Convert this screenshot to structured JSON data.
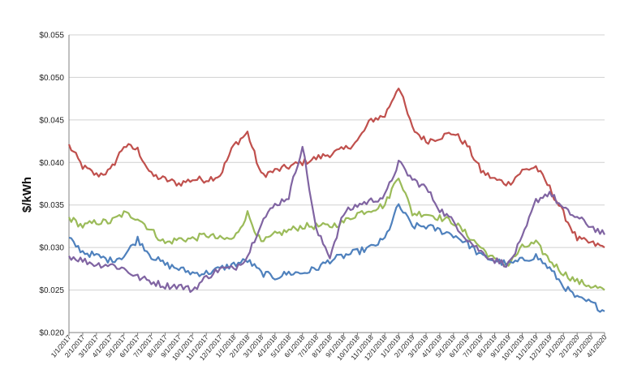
{
  "chart_data": {
    "type": "line",
    "title": "",
    "xlabel": "",
    "ylabel": "$/kWh",
    "ylim": [
      0.02,
      0.055
    ],
    "yticks": [
      "$0.020",
      "$0.025",
      "$0.030",
      "$0.035",
      "$0.040",
      "$0.045",
      "$0.050",
      "$0.055"
    ],
    "y_tick_values": [
      0.02,
      0.025,
      0.03,
      0.035,
      0.04,
      0.045,
      0.05,
      0.055
    ],
    "grid": true,
    "legend": "none",
    "categories": [
      "1/1/2017",
      "2/1/2017",
      "3/1/2017",
      "4/1/2017",
      "5/1/2017",
      "6/1/2017",
      "7/1/2017",
      "8/1/2017",
      "9/1/2017",
      "10/1/2017",
      "11/1/2017",
      "12/1/2017",
      "1/1/2018",
      "2/1/2018",
      "3/1/2018",
      "4/1/2018",
      "5/1/2018",
      "6/1/2018",
      "7/1/2018",
      "8/1/2018",
      "9/1/2018",
      "10/1/2018",
      "11/1/2018",
      "12/1/2018",
      "1/1/2019",
      "2/1/2019",
      "3/1/2019",
      "4/1/2019",
      "5/1/2019",
      "6/1/2019",
      "7/1/2019",
      "8/1/2019",
      "9/1/2019",
      "10/1/2019",
      "11/1/2019",
      "12/1/2019",
      "1/1/2020",
      "2/1/2020",
      "3/1/2020",
      "4/1/2020"
    ],
    "series": [
      {
        "color": "#c0504d",
        "values": [
          0.042,
          0.0395,
          0.0385,
          0.039,
          0.042,
          0.0415,
          0.0385,
          0.038,
          0.0375,
          0.038,
          0.038,
          0.0385,
          0.042,
          0.0435,
          0.0385,
          0.039,
          0.0395,
          0.04,
          0.0405,
          0.041,
          0.0415,
          0.0425,
          0.045,
          0.0455,
          0.049,
          0.044,
          0.0425,
          0.043,
          0.0435,
          0.042,
          0.039,
          0.038,
          0.0375,
          0.039,
          0.0395,
          0.037,
          0.034,
          0.031,
          0.0305,
          0.03
        ]
      },
      {
        "color": "#9bbb59",
        "values": [
          0.0335,
          0.0325,
          0.033,
          0.033,
          0.034,
          0.0335,
          0.032,
          0.0305,
          0.031,
          0.031,
          0.0315,
          0.031,
          0.031,
          0.034,
          0.0305,
          0.0315,
          0.032,
          0.0325,
          0.0325,
          0.0325,
          0.033,
          0.034,
          0.0345,
          0.035,
          0.0385,
          0.034,
          0.034,
          0.0335,
          0.033,
          0.0315,
          0.03,
          0.0285,
          0.028,
          0.03,
          0.0305,
          0.0285,
          0.027,
          0.026,
          0.0255,
          0.025
        ]
      },
      {
        "color": "#4f81bd",
        "values": [
          0.031,
          0.0295,
          0.029,
          0.0285,
          0.029,
          0.031,
          0.029,
          0.028,
          0.0275,
          0.027,
          0.027,
          0.0275,
          0.028,
          0.0285,
          0.027,
          0.0265,
          0.027,
          0.027,
          0.0275,
          0.0285,
          0.029,
          0.0295,
          0.03,
          0.031,
          0.035,
          0.0325,
          0.0325,
          0.032,
          0.0315,
          0.0305,
          0.029,
          0.0285,
          0.028,
          0.0285,
          0.029,
          0.0275,
          0.0255,
          0.024,
          0.0235,
          0.0225
        ]
      },
      {
        "color": "#8064a2",
        "values": [
          0.029,
          0.0285,
          0.028,
          0.028,
          0.0275,
          0.0265,
          0.026,
          0.0255,
          0.0255,
          0.025,
          0.0265,
          0.0275,
          0.0275,
          0.029,
          0.033,
          0.035,
          0.036,
          0.042,
          0.032,
          0.029,
          0.034,
          0.035,
          0.0355,
          0.036,
          0.04,
          0.038,
          0.037,
          0.0345,
          0.033,
          0.031,
          0.0295,
          0.0285,
          0.028,
          0.031,
          0.0355,
          0.0365,
          0.0345,
          0.0335,
          0.0325,
          0.0315
        ]
      }
    ]
  }
}
